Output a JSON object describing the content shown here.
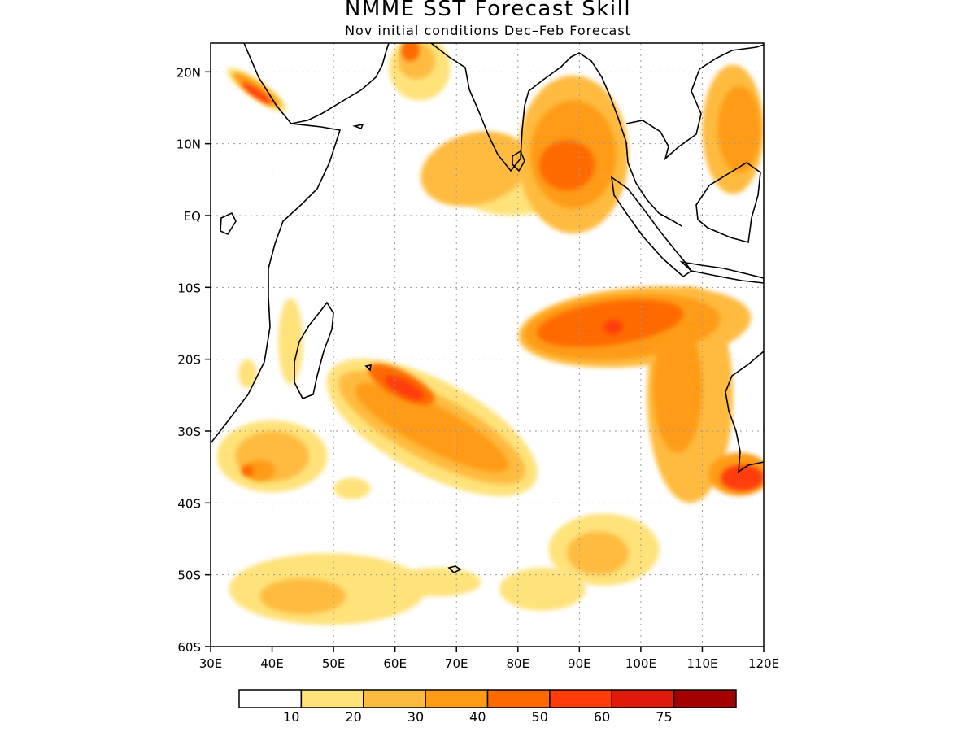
{
  "title": "NMME SST Forecast Skill",
  "subtitle": "Nov initial conditions  Dec–Feb Forecast",
  "chart_data": {
    "type": "heatmap",
    "region": "Indian Ocean",
    "xlim": [
      30,
      120
    ],
    "ylim": [
      -60,
      24
    ],
    "x_ticks": [
      {
        "value": 30,
        "label": "30E"
      },
      {
        "value": 40,
        "label": "40E"
      },
      {
        "value": 50,
        "label": "50E"
      },
      {
        "value": 60,
        "label": "60E"
      },
      {
        "value": 70,
        "label": "70E"
      },
      {
        "value": 80,
        "label": "80E"
      },
      {
        "value": 90,
        "label": "90E"
      },
      {
        "value": 100,
        "label": "100E"
      },
      {
        "value": 110,
        "label": "110E"
      },
      {
        "value": 120,
        "label": "120E"
      }
    ],
    "y_ticks": [
      {
        "value": 20,
        "label": "20N"
      },
      {
        "value": 10,
        "label": "10N"
      },
      {
        "value": 0,
        "label": "EQ"
      },
      {
        "value": -10,
        "label": "10S"
      },
      {
        "value": -20,
        "label": "20S"
      },
      {
        "value": -30,
        "label": "30S"
      },
      {
        "value": -40,
        "label": "40S"
      },
      {
        "value": -50,
        "label": "50S"
      },
      {
        "value": -60,
        "label": "60S"
      }
    ],
    "grid": "dotted",
    "colorbar": {
      "levels": [
        "10",
        "20",
        "30",
        "40",
        "50",
        "60",
        "75"
      ],
      "colors": [
        "#ffffff",
        "#ffe27a",
        "#ffbb3f",
        "#ff9b14",
        "#ff6a00",
        "#ff3c0a",
        "#e01a0a",
        "#a30000"
      ]
    },
    "skill_regions": [
      {
        "lon": 37.5,
        "lat": 17.5,
        "rx": 1.5,
        "ry": 5,
        "rot": -55,
        "level": 1
      },
      {
        "lon": 37.5,
        "lat": 17.5,
        "rx": 1.1,
        "ry": 4,
        "rot": -55,
        "level": 3
      },
      {
        "lon": 37.5,
        "lat": 17.0,
        "rx": 0.6,
        "ry": 2.5,
        "rot": -55,
        "level": 5
      },
      {
        "lon": 64,
        "lat": 20.5,
        "rx": 5,
        "ry": 4.5,
        "rot": 0,
        "level": 1
      },
      {
        "lon": 63.5,
        "lat": 21.5,
        "rx": 3,
        "ry": 2.5,
        "rot": 0,
        "level": 2
      },
      {
        "lon": 62.5,
        "lat": 23.0,
        "rx": 1.5,
        "ry": 1.5,
        "rot": 0,
        "level": 4
      },
      {
        "lon": 73,
        "lat": 6.5,
        "rx": 9,
        "ry": 5,
        "rot": -15,
        "level": 2
      },
      {
        "lon": 79,
        "lat": 3.0,
        "rx": 8,
        "ry": 3,
        "rot": 0,
        "level": 1
      },
      {
        "lon": 89,
        "lat": 8.5,
        "rx": 9,
        "ry": 11,
        "rot": 0,
        "level": 2
      },
      {
        "lon": 89,
        "lat": 8.5,
        "rx": 7,
        "ry": 7.5,
        "rot": 0,
        "level": 3
      },
      {
        "lon": 88,
        "lat": 7.0,
        "rx": 4.5,
        "ry": 3.5,
        "rot": 0,
        "level": 4
      },
      {
        "lon": 115,
        "lat": 12,
        "rx": 5,
        "ry": 9,
        "rot": 0,
        "level": 2
      },
      {
        "lon": 116,
        "lat": 12,
        "rx": 3.5,
        "ry": 6,
        "rot": 0,
        "level": 3
      },
      {
        "lon": 99,
        "lat": -15.5,
        "rx": 19,
        "ry": 5.5,
        "rot": -5,
        "level": 2
      },
      {
        "lon": 97,
        "lat": -15.5,
        "rx": 16,
        "ry": 4.5,
        "rot": -5,
        "level": 3
      },
      {
        "lon": 95,
        "lat": -15.0,
        "rx": 12,
        "ry": 3,
        "rot": -8,
        "level": 4
      },
      {
        "lon": 95.5,
        "lat": -15.5,
        "rx": 1.5,
        "ry": 1,
        "rot": 0,
        "level": 5
      },
      {
        "lon": 108,
        "lat": -25,
        "rx": 7,
        "ry": 15,
        "rot": 0,
        "level": 2
      },
      {
        "lon": 106,
        "lat": -24,
        "rx": 4,
        "ry": 9,
        "rot": 0,
        "level": 3
      },
      {
        "lon": 116,
        "lat": -36,
        "rx": 5,
        "ry": 3,
        "rot": 0,
        "level": 3
      },
      {
        "lon": 116.5,
        "lat": -36.5,
        "rx": 3.5,
        "ry": 1.8,
        "rot": 0,
        "level": 5
      },
      {
        "lon": 66,
        "lat": -29.5,
        "rx": 19,
        "ry": 6.5,
        "rot": 28,
        "level": 1
      },
      {
        "lon": 66,
        "lat": -29.5,
        "rx": 17,
        "ry": 4.5,
        "rot": 28,
        "level": 2
      },
      {
        "lon": 66,
        "lat": -29.5,
        "rx": 14,
        "ry": 3,
        "rot": 28,
        "level": 3
      },
      {
        "lon": 61,
        "lat": -23.5,
        "rx": 6,
        "ry": 1.8,
        "rot": 28,
        "level": 4
      },
      {
        "lon": 61.5,
        "lat": -24.0,
        "rx": 3.5,
        "ry": 1,
        "rot": 28,
        "level": 5
      },
      {
        "lon": 40,
        "lat": -33.5,
        "rx": 9,
        "ry": 5,
        "rot": 0,
        "level": 1
      },
      {
        "lon": 40,
        "lat": -33.5,
        "rx": 6,
        "ry": 3.5,
        "rot": 0,
        "level": 2
      },
      {
        "lon": 38,
        "lat": -35.5,
        "rx": 2.5,
        "ry": 1.5,
        "rot": 0,
        "level": 3
      },
      {
        "lon": 36,
        "lat": -35.5,
        "rx": 1,
        "ry": 0.8,
        "rot": 0,
        "level": 4
      },
      {
        "lon": 53,
        "lat": -38,
        "rx": 3,
        "ry": 1.5,
        "rot": 0,
        "level": 1
      },
      {
        "lon": 49,
        "lat": -52,
        "rx": 16,
        "ry": 5,
        "rot": 0,
        "level": 1
      },
      {
        "lon": 45,
        "lat": -53,
        "rx": 7,
        "ry": 2.5,
        "rot": 0,
        "level": 2
      },
      {
        "lon": 67,
        "lat": -51,
        "rx": 7,
        "ry": 2,
        "rot": 0,
        "level": 1
      },
      {
        "lon": 94,
        "lat": -46.5,
        "rx": 9,
        "ry": 5,
        "rot": 0,
        "level": 1
      },
      {
        "lon": 93,
        "lat": -47,
        "rx": 5,
        "ry": 3,
        "rot": 0,
        "level": 2
      },
      {
        "lon": 84,
        "lat": -52,
        "rx": 7,
        "ry": 3,
        "rot": 0,
        "level": 1
      },
      {
        "lon": 43,
        "lat": -17.5,
        "rx": 2,
        "ry": 6,
        "rot": 0,
        "level": 1
      },
      {
        "lon": 36,
        "lat": -22,
        "rx": 1.5,
        "ry": 2,
        "rot": 0,
        "level": 1
      }
    ]
  }
}
